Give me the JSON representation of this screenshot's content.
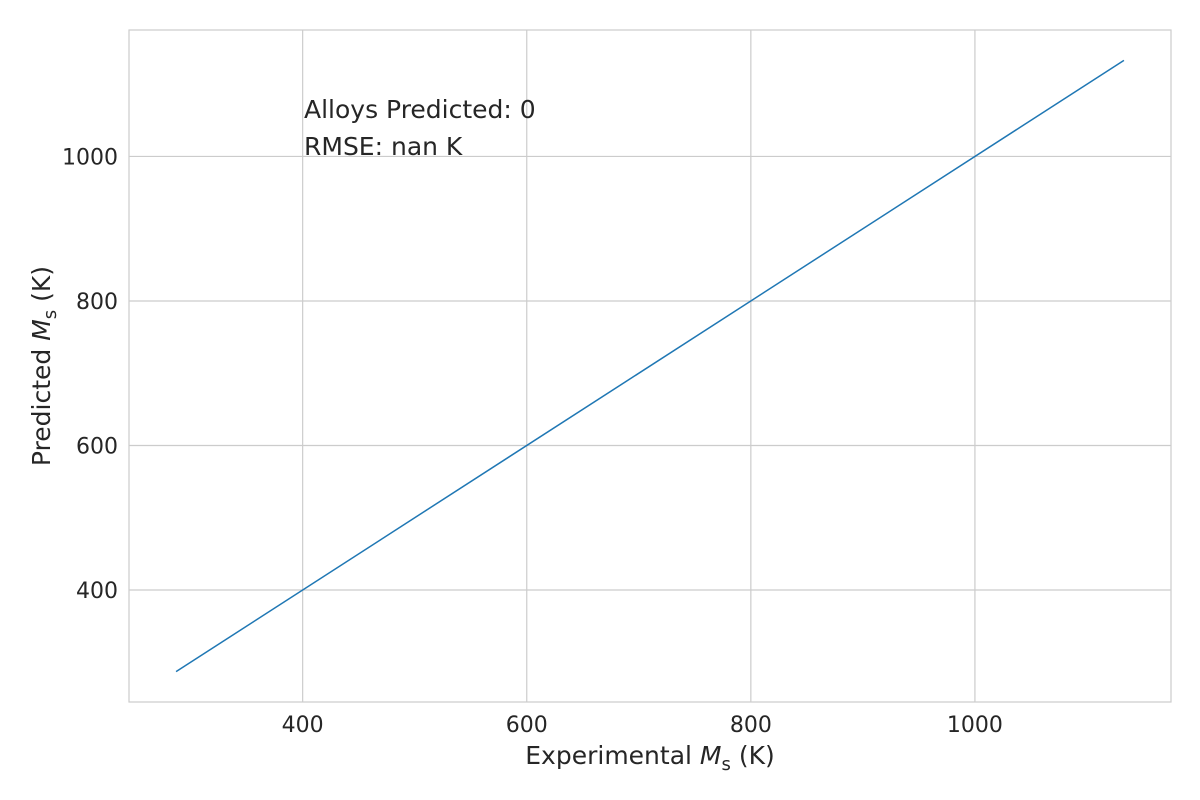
{
  "chart_data": {
    "type": "line",
    "title": "",
    "xlabel": {
      "prefix": "Experimental ",
      "symbol": "M",
      "subscript": "s",
      "suffix": " (K)"
    },
    "ylabel": {
      "prefix": "Predicted ",
      "symbol": "M",
      "subscript": "s",
      "suffix": " (K)"
    },
    "xlim": [
      245,
      1175
    ],
    "ylim": [
      245,
      1175
    ],
    "xticks": [
      400,
      600,
      800,
      1000
    ],
    "yticks": [
      400,
      600,
      800,
      1000
    ],
    "xtick_labels": [
      "400",
      "600",
      "800",
      "1000"
    ],
    "ytick_labels": [
      "400",
      "600",
      "800",
      "1000"
    ],
    "grid": true,
    "series": [
      {
        "x": [
          287,
          1133
        ],
        "y": [
          287,
          1133
        ],
        "color": "#1f77b4"
      }
    ],
    "annotations": {
      "alloys_predicted": "Alloys Predicted: 0",
      "rmse": "RMSE: nan K"
    }
  },
  "colors": {
    "grid": "#cccccc",
    "spine": "#cccccc",
    "text": "#262626",
    "line": "#1f77b4"
  }
}
